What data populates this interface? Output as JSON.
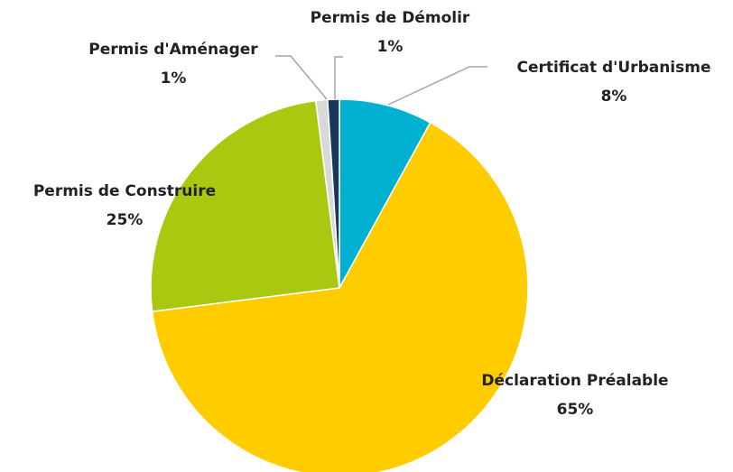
{
  "chart_data": {
    "type": "pie",
    "categories": [
      "Certificat d'Urbanisme",
      "Déclaration Préalable",
      "Permis de Construire",
      "Permis d'Aménager",
      "Permis de Démolir"
    ],
    "values": [
      8,
      65,
      25,
      1,
      1
    ],
    "value_labels": [
      "8%",
      "65%",
      "25%",
      "1%",
      "1%"
    ],
    "colors": [
      "#00b0d0",
      "#ffcc00",
      "#a9c80f",
      "#d9d9d9",
      "#17375e"
    ]
  }
}
